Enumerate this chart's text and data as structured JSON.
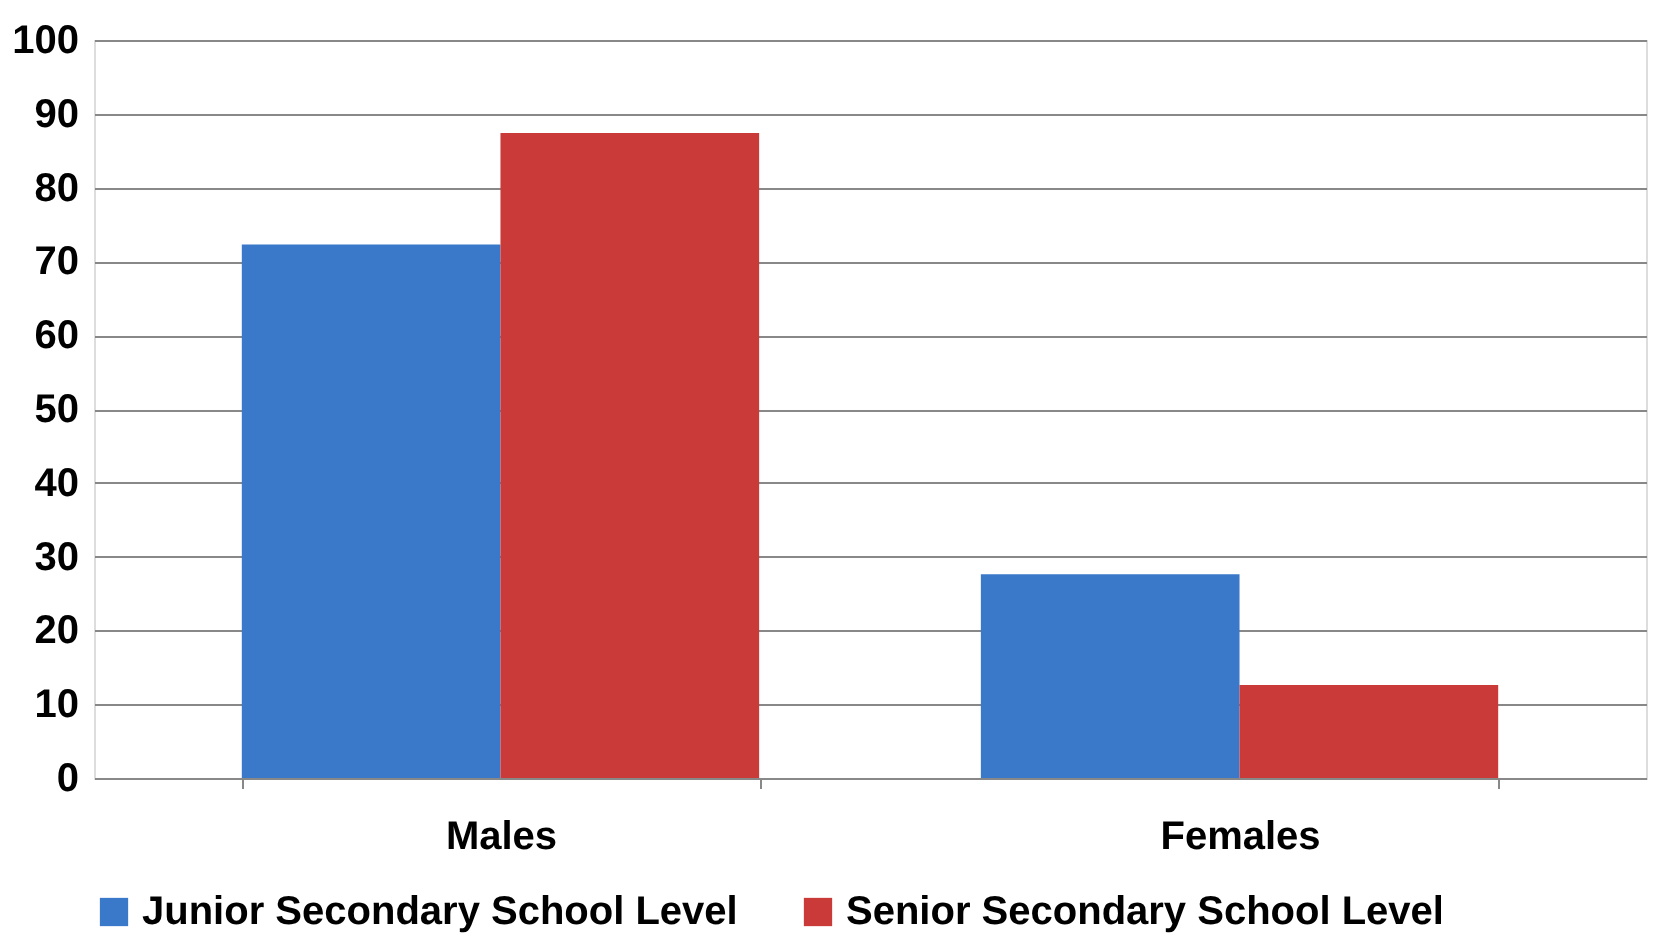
{
  "chart_data": {
    "type": "bar",
    "categories": [
      "Males",
      "Females"
    ],
    "series": [
      {
        "name": "Junior Secondary School Level",
        "color": "#3a78c9",
        "values": [
          72.3,
          27.6
        ]
      },
      {
        "name": "Senior Secondary School Level",
        "color": "#c93a38",
        "values": [
          87.4,
          12.6
        ]
      }
    ],
    "ylim": [
      0,
      100
    ],
    "yticks": [
      0,
      10,
      20,
      30,
      40,
      50,
      60,
      70,
      80,
      90,
      100
    ],
    "grid": "y",
    "legend": "bottom"
  }
}
